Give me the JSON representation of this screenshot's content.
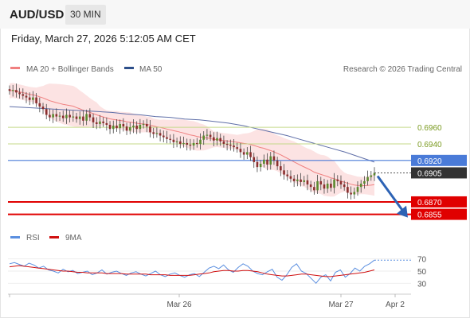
{
  "header": {
    "pair": "AUD/USD",
    "timeframe": "30 MIN"
  },
  "datetime": "Friday, March 27, 2026 5:12:05 AM CET",
  "legend": {
    "ma20_label": "MA 20 + Bollinger Bands",
    "ma50_label": "MA 50",
    "credit": "Research © 2026 Trading Central",
    "rsi_label": "RSI",
    "rsi_ma_label": "9MA"
  },
  "colors": {
    "bg": "#ffffff",
    "bull": "#5a8a2e",
    "bear": "#8a2e2e",
    "ma20": "#f08080",
    "band_fill": "#fbd9d9",
    "ma50": "#5f6fa8",
    "resistance": "#c5d98a",
    "pivot": "#4a7bd8",
    "support": "#e00000",
    "arrow": "#2d63b5",
    "rsi": "#5b8fe0",
    "rsi_ma": "#d01010",
    "current": "#333333"
  },
  "chart_data": [
    {
      "type": "candlestick",
      "title": "AUD/USD 30 MIN",
      "ylim": [
        0.6845,
        0.701
      ],
      "levels": [
        {
          "label": "0.6960",
          "value": 0.696,
          "kind": "resistance"
        },
        {
          "label": "0.6940",
          "value": 0.694,
          "kind": "resistance"
        },
        {
          "label": "0.6920",
          "value": 0.692,
          "kind": "pivot"
        },
        {
          "label": "0.6870",
          "value": 0.687,
          "kind": "support"
        },
        {
          "label": "0.6855",
          "value": 0.6855,
          "kind": "support"
        }
      ],
      "current_price": {
        "label": "0.6905",
        "value": 0.6905
      },
      "ohlc_closes": [
        0.7004,
        0.7005,
        0.7002,
        0.7,
        0.6998,
        0.6996,
        0.6993,
        0.6996,
        0.6989,
        0.6985,
        0.6982,
        0.6975,
        0.6972,
        0.6976,
        0.6973,
        0.6974,
        0.6971,
        0.6975,
        0.6972,
        0.6973,
        0.697,
        0.6973,
        0.6968,
        0.6976,
        0.6972,
        0.6966,
        0.6964,
        0.6967,
        0.6965,
        0.6963,
        0.6958,
        0.6962,
        0.6959,
        0.6964,
        0.6961,
        0.6956,
        0.696,
        0.6962,
        0.6958,
        0.6963,
        0.6964,
        0.6961,
        0.6954,
        0.6952,
        0.6953,
        0.695,
        0.6948,
        0.6946,
        0.6945,
        0.6942,
        0.6943,
        0.694,
        0.6941,
        0.6939,
        0.6938,
        0.6941,
        0.694,
        0.6945,
        0.695,
        0.6951,
        0.6948,
        0.6944,
        0.6947,
        0.6943,
        0.694,
        0.6939,
        0.6938,
        0.6936,
        0.6934,
        0.693,
        0.6927,
        0.693,
        0.6924,
        0.6918,
        0.6912,
        0.6916,
        0.6921,
        0.6915,
        0.6925,
        0.692,
        0.6913,
        0.6908,
        0.6903,
        0.6901,
        0.6898,
        0.6895,
        0.6897,
        0.6894,
        0.6896,
        0.6891,
        0.6888,
        0.6884,
        0.6895,
        0.6891,
        0.6886,
        0.6892,
        0.6887,
        0.6897,
        0.6895,
        0.6891,
        0.6888,
        0.6881,
        0.6879,
        0.6882,
        0.6888,
        0.6892,
        0.6895,
        0.69,
        0.6902,
        0.6905
      ],
      "ma50_series": [
        0.6985,
        0.6984,
        0.6983,
        0.6982,
        0.6981,
        0.698,
        0.6979,
        0.6978,
        0.6976,
        0.6975,
        0.6973,
        0.6972,
        0.697,
        0.6969,
        0.6967,
        0.6965,
        0.6962,
        0.6958,
        0.6954,
        0.695,
        0.6945,
        0.694,
        0.6935,
        0.693,
        0.6924,
        0.6918
      ],
      "rsi": {
        "ylim": [
          20,
          80
        ],
        "ticks": [
          "70",
          "50",
          "30"
        ],
        "rsi_series": [
          62,
          64,
          61,
          58,
          63,
          60,
          55,
          58,
          52,
          50,
          47,
          53,
          49,
          51,
          46,
          48,
          50,
          44,
          47,
          52,
          45,
          48,
          50,
          46,
          43,
          47,
          49,
          45,
          42,
          46,
          50,
          44,
          41,
          45,
          47,
          43,
          40,
          44,
          46,
          41,
          48,
          55,
          58,
          54,
          60,
          52,
          48,
          56,
          62,
          58,
          50,
          46,
          44,
          49,
          53,
          40,
          35,
          44,
          56,
          62,
          50,
          46,
          38,
          30,
          40,
          44,
          34,
          48,
          52,
          40,
          46,
          55,
          50,
          58,
          62,
          68
        ],
        "ma_series": [
          57,
          58,
          59,
          58,
          57,
          56,
          55,
          54,
          53,
          52,
          51,
          50,
          50,
          49,
          48,
          48,
          47,
          47,
          47,
          47,
          46,
          46,
          46,
          46,
          45,
          45,
          45,
          45,
          45,
          44,
          44,
          44,
          44,
          43,
          43,
          43,
          43,
          43,
          44,
          45,
          46,
          47,
          49,
          50,
          51,
          51,
          50,
          50,
          51,
          51,
          50,
          49,
          47,
          45,
          44,
          43,
          42,
          42,
          43,
          44,
          45,
          45,
          44,
          43,
          42,
          41,
          41,
          42,
          43,
          44,
          45,
          46,
          47,
          48,
          50,
          52
        ]
      },
      "x_ticks": [
        "Mar 26",
        "Mar 27",
        "Apr 2"
      ]
    }
  ]
}
